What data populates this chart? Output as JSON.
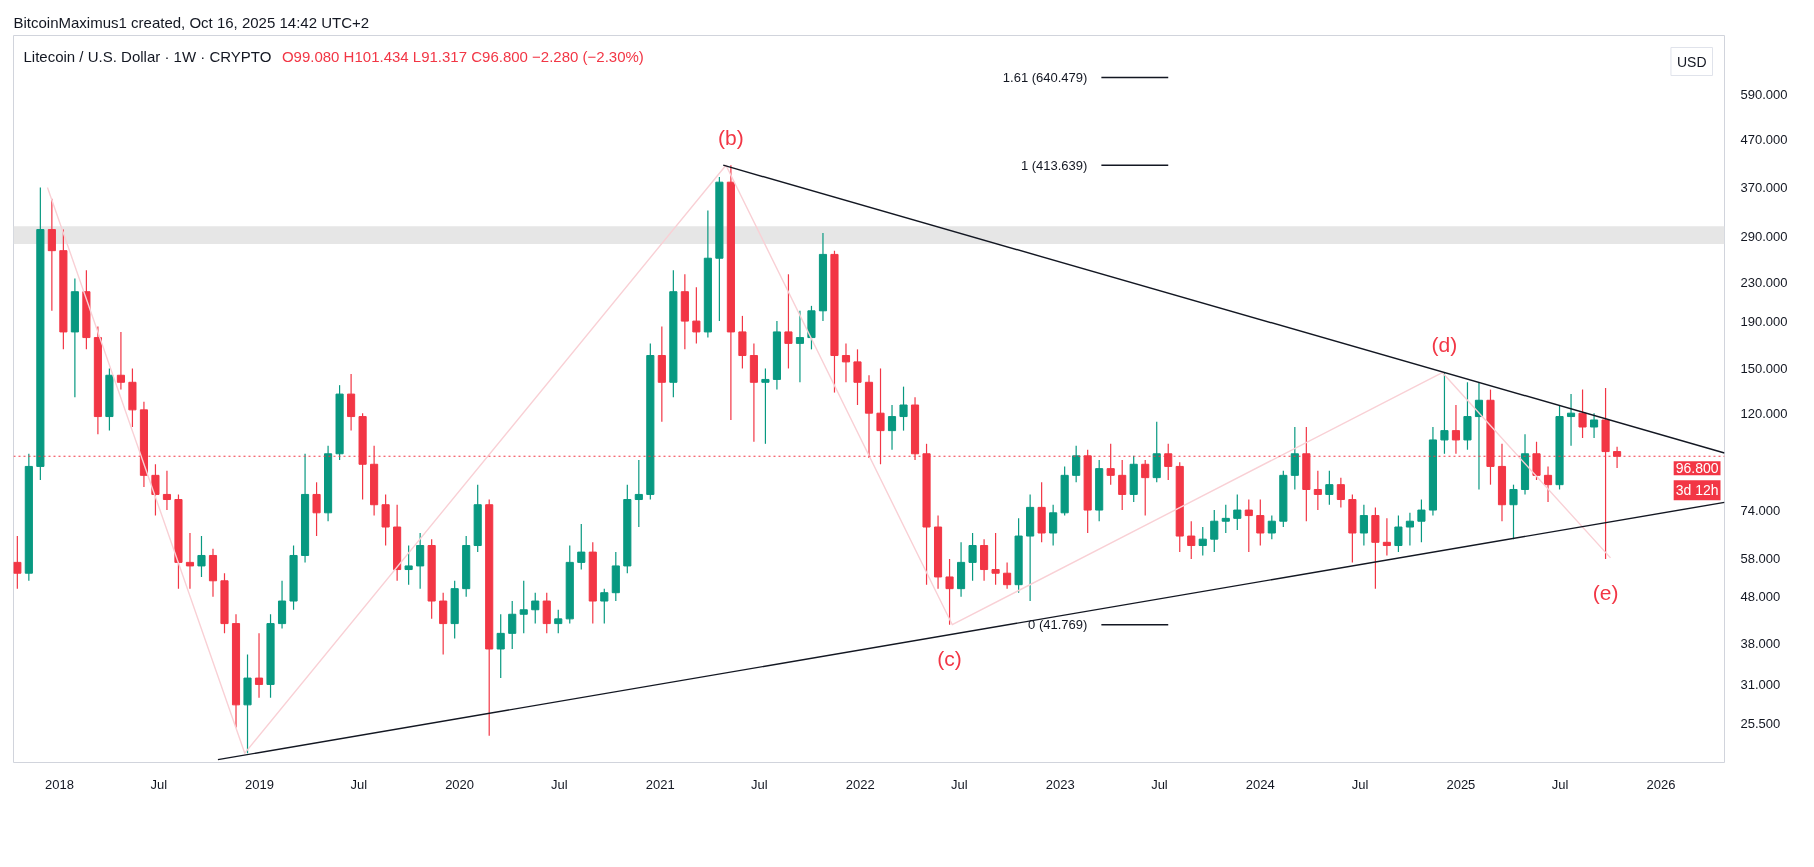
{
  "chart_data": {
    "type": "candlestick",
    "title": "Litecoin / U.S. Dollar · 1W · CRYPTO",
    "subtitle": "O99.080 H101.434 L91.317 C96.800 −2.280 (−2.30%)",
    "ylabel": "USD",
    "log": true,
    "xlim": [
      "2017-10-09",
      "2026-04-27"
    ],
    "ylim": [
      21,
      790
    ],
    "xticks": [
      {
        "value": "2018-01-01",
        "label": "2018"
      },
      {
        "value": "2018-07-01",
        "label": "Jul"
      },
      {
        "value": "2019-01-01",
        "label": "2019"
      },
      {
        "value": "2019-07-01",
        "label": "Jul"
      },
      {
        "value": "2020-01-01",
        "label": "2020"
      },
      {
        "value": "2020-07-01",
        "label": "Jul"
      },
      {
        "value": "2021-01-01",
        "label": "2021"
      },
      {
        "value": "2021-07-01",
        "label": "Jul"
      },
      {
        "value": "2022-01-01",
        "label": "2022"
      },
      {
        "value": "2022-07-01",
        "label": "Jul"
      },
      {
        "value": "2023-01-01",
        "label": "2023"
      },
      {
        "value": "2023-07-01",
        "label": "Jul"
      },
      {
        "value": "2024-01-01",
        "label": "2024"
      },
      {
        "value": "2024-07-01",
        "label": "Jul"
      },
      {
        "value": "2025-01-01",
        "label": "2025"
      },
      {
        "value": "2025-07-01",
        "label": "Jul"
      },
      {
        "value": "2026-01-01",
        "label": "2026"
      }
    ],
    "yticks": [
      {
        "value": 25.5,
        "label": "25.500"
      },
      {
        "value": 31,
        "label": "31.000"
      },
      {
        "value": 38,
        "label": "38.000"
      },
      {
        "value": 48,
        "label": "48.000"
      },
      {
        "value": 58,
        "label": "58.000"
      },
      {
        "value": 74,
        "label": "74.000"
      },
      {
        "value": 120,
        "label": "120.000"
      },
      {
        "value": 150,
        "label": "150.000"
      },
      {
        "value": 190,
        "label": "190.000"
      },
      {
        "value": 230,
        "label": "230.000"
      },
      {
        "value": 290,
        "label": "290.000"
      },
      {
        "value": 370,
        "label": "370.000"
      },
      {
        "value": 470,
        "label": "470.000"
      },
      {
        "value": 590,
        "label": "590.000"
      }
    ],
    "x": [
      "2017-10-16",
      "2017-11-06",
      "2017-11-27",
      "2017-12-18",
      "2018-01-08",
      "2018-01-29",
      "2018-02-19",
      "2018-03-12",
      "2018-04-02",
      "2018-04-23",
      "2018-05-14",
      "2018-06-04",
      "2018-06-25",
      "2018-07-16",
      "2018-08-06",
      "2018-08-27",
      "2018-09-17",
      "2018-10-08",
      "2018-10-29",
      "2018-11-19",
      "2018-12-10",
      "2018-12-31",
      "2019-01-21",
      "2019-02-11",
      "2019-03-04",
      "2019-03-25",
      "2019-04-15",
      "2019-05-06",
      "2019-05-27",
      "2019-06-17",
      "2019-07-08",
      "2019-07-29",
      "2019-08-19",
      "2019-09-09",
      "2019-09-30",
      "2019-10-21",
      "2019-11-11",
      "2019-12-02",
      "2019-12-23",
      "2020-01-13",
      "2020-02-03",
      "2020-02-24",
      "2020-03-16",
      "2020-04-06",
      "2020-04-27",
      "2020-05-18",
      "2020-06-08",
      "2020-06-29",
      "2020-07-20",
      "2020-08-10",
      "2020-08-31",
      "2020-09-21",
      "2020-10-12",
      "2020-11-02",
      "2020-11-23",
      "2020-12-14",
      "2021-01-04",
      "2021-01-25",
      "2021-02-15",
      "2021-03-08",
      "2021-03-29",
      "2021-04-19",
      "2021-05-10",
      "2021-05-31",
      "2021-06-21",
      "2021-07-12",
      "2021-08-02",
      "2021-08-23",
      "2021-09-13",
      "2021-10-04",
      "2021-10-25",
      "2021-11-15",
      "2021-12-06",
      "2021-12-27",
      "2022-01-17",
      "2022-02-07",
      "2022-02-28",
      "2022-03-21",
      "2022-04-11",
      "2022-05-02",
      "2022-05-23",
      "2022-06-13",
      "2022-07-04",
      "2022-07-25",
      "2022-08-15",
      "2022-09-05",
      "2022-09-26",
      "2022-10-17",
      "2022-11-07",
      "2022-11-28",
      "2022-12-19",
      "2023-01-09",
      "2023-01-30",
      "2023-02-20",
      "2023-03-13",
      "2023-04-03",
      "2023-04-24",
      "2023-05-15",
      "2023-06-05",
      "2023-06-26",
      "2023-07-17",
      "2023-08-07",
      "2023-08-28",
      "2023-09-18",
      "2023-10-09",
      "2023-10-30",
      "2023-11-20",
      "2023-12-11",
      "2024-01-01",
      "2024-01-22",
      "2024-02-12",
      "2024-03-04",
      "2024-03-25",
      "2024-04-15",
      "2024-05-06",
      "2024-05-27",
      "2024-06-17",
      "2024-07-08",
      "2024-07-29",
      "2024-08-19",
      "2024-09-09",
      "2024-09-30",
      "2024-10-21",
      "2024-11-11",
      "2024-12-02",
      "2024-12-23",
      "2025-01-13",
      "2025-02-03",
      "2025-02-24",
      "2025-03-17",
      "2025-04-07",
      "2025-04-28",
      "2025-05-19",
      "2025-06-09",
      "2025-06-30",
      "2025-07-21",
      "2025-08-11",
      "2025-09-01",
      "2025-09-22",
      "2025-10-13"
    ],
    "ohlc": [
      [
        57,
        65,
        50,
        54
      ],
      [
        54,
        98,
        52,
        92
      ],
      [
        92,
        370,
        86,
        300
      ],
      [
        300,
        350,
        200,
        270
      ],
      [
        270,
        300,
        165,
        180
      ],
      [
        180,
        235,
        130,
        220
      ],
      [
        220,
        245,
        165,
        175
      ],
      [
        175,
        185,
        108,
        118
      ],
      [
        118,
        150,
        110,
        145
      ],
      [
        145,
        180,
        135,
        140
      ],
      [
        140,
        150,
        112,
        122
      ],
      [
        122,
        127,
        83,
        88
      ],
      [
        88,
        93,
        72,
        80
      ],
      [
        80,
        90,
        74,
        78
      ],
      [
        78,
        80,
        50,
        57
      ],
      [
        57,
        66,
        50,
        56
      ],
      [
        56,
        65,
        53,
        59
      ],
      [
        59,
        61,
        48,
        52
      ],
      [
        52,
        54,
        40,
        42
      ],
      [
        42,
        44,
        25,
        28
      ],
      [
        28,
        36,
        22,
        32
      ],
      [
        32,
        40,
        29,
        31
      ],
      [
        31,
        44,
        29,
        42
      ],
      [
        42,
        52,
        41,
        47
      ],
      [
        47,
        62,
        45,
        59
      ],
      [
        59,
        98,
        57,
        80
      ],
      [
        80,
        85,
        65,
        73
      ],
      [
        73,
        102,
        70,
        98
      ],
      [
        98,
        138,
        95,
        132
      ],
      [
        132,
        146,
        110,
        118
      ],
      [
        118,
        120,
        78,
        93
      ],
      [
        93,
        102,
        72,
        76
      ],
      [
        76,
        80,
        62,
        68
      ],
      [
        68,
        76,
        52,
        55
      ],
      [
        55,
        62,
        51,
        56
      ],
      [
        56,
        66,
        50,
        62
      ],
      [
        62,
        64,
        43,
        47
      ],
      [
        47,
        49,
        36,
        42
      ],
      [
        42,
        52,
        39,
        50
      ],
      [
        50,
        65,
        48,
        62
      ],
      [
        62,
        84,
        60,
        76
      ],
      [
        76,
        78,
        24,
        37
      ],
      [
        37,
        44,
        32,
        40
      ],
      [
        40,
        47,
        37,
        44
      ],
      [
        44,
        52,
        40,
        45
      ],
      [
        45,
        49,
        42,
        47
      ],
      [
        47,
        49,
        40,
        42
      ],
      [
        42,
        45,
        40,
        43
      ],
      [
        43,
        62,
        42,
        57
      ],
      [
        57,
        69,
        55,
        60
      ],
      [
        60,
        63,
        42,
        47
      ],
      [
        47,
        50,
        42,
        49
      ],
      [
        49,
        60,
        47,
        56
      ],
      [
        56,
        84,
        54,
        78
      ],
      [
        78,
        95,
        68,
        80
      ],
      [
        80,
        170,
        78,
        160
      ],
      [
        160,
        185,
        115,
        140
      ],
      [
        140,
        245,
        130,
        220
      ],
      [
        220,
        240,
        165,
        190
      ],
      [
        190,
        225,
        170,
        180
      ],
      [
        180,
        330,
        175,
        260
      ],
      [
        260,
        390,
        190,
        380
      ],
      [
        380,
        413.6,
        116,
        180
      ],
      [
        180,
        195,
        150,
        160
      ],
      [
        160,
        170,
        104,
        140
      ],
      [
        140,
        150,
        103,
        142
      ],
      [
        142,
        190,
        135,
        180
      ],
      [
        180,
        240,
        150,
        170
      ],
      [
        170,
        200,
        140,
        175
      ],
      [
        175,
        205,
        165,
        200
      ],
      [
        200,
        295,
        190,
        265
      ],
      [
        265,
        270,
        133,
        160
      ],
      [
        160,
        170,
        140,
        155
      ],
      [
        155,
        165,
        125,
        140
      ],
      [
        140,
        145,
        96,
        120
      ],
      [
        120,
        150,
        93,
        110
      ],
      [
        110,
        125,
        100,
        118
      ],
      [
        118,
        137,
        110,
        125
      ],
      [
        125,
        130,
        95,
        98
      ],
      [
        98,
        103,
        51,
        68
      ],
      [
        68,
        72,
        50,
        53
      ],
      [
        53,
        58,
        41.77,
        50
      ],
      [
        50,
        63,
        48,
        57
      ],
      [
        57,
        66,
        52,
        62
      ],
      [
        62,
        64,
        52,
        55
      ],
      [
        55,
        66,
        51,
        54
      ],
      [
        54,
        57,
        50,
        51
      ],
      [
        51,
        71,
        49,
        65
      ],
      [
        65,
        80,
        47,
        75
      ],
      [
        75,
        85,
        63,
        66
      ],
      [
        66,
        76,
        62,
        73
      ],
      [
        73,
        92,
        72,
        88
      ],
      [
        88,
        102,
        85,
        97
      ],
      [
        97,
        100,
        66,
        74
      ],
      [
        74,
        95,
        70,
        91
      ],
      [
        91,
        103,
        84,
        88
      ],
      [
        88,
        95,
        74,
        80
      ],
      [
        80,
        97,
        77,
        93
      ],
      [
        93,
        95,
        72,
        87
      ],
      [
        87,
        115,
        85,
        98
      ],
      [
        98,
        103,
        86,
        92
      ],
      [
        92,
        94,
        60,
        65
      ],
      [
        65,
        70,
        58,
        62
      ],
      [
        62,
        68,
        59,
        64
      ],
      [
        64,
        74,
        60,
        70
      ],
      [
        70,
        76,
        66,
        71
      ],
      [
        71,
        80,
        67,
        74
      ],
      [
        74,
        78,
        60,
        72
      ],
      [
        72,
        78,
        62,
        66
      ],
      [
        66,
        72,
        64,
        70
      ],
      [
        70,
        90,
        68,
        88
      ],
      [
        88,
        112,
        82,
        98
      ],
      [
        98,
        112,
        70,
        82
      ],
      [
        82,
        90,
        74,
        80
      ],
      [
        80,
        90,
        76,
        84
      ],
      [
        84,
        87,
        75,
        78
      ],
      [
        78,
        80,
        57,
        66
      ],
      [
        66,
        76,
        62,
        72
      ],
      [
        72,
        75,
        50,
        63
      ],
      [
        63,
        71,
        59,
        62
      ],
      [
        62,
        72,
        60,
        68
      ],
      [
        68,
        73,
        62,
        70
      ],
      [
        70,
        78,
        63,
        74
      ],
      [
        74,
        112,
        72,
        105
      ],
      [
        105,
        147,
        98,
        110
      ],
      [
        110,
        125,
        98,
        105
      ],
      [
        105,
        140,
        100,
        118
      ],
      [
        118,
        140,
        82,
        128
      ],
      [
        128,
        135,
        84,
        92
      ],
      [
        92,
        103,
        70,
        76
      ],
      [
        76,
        84,
        64,
        82
      ],
      [
        82,
        108,
        80,
        98
      ],
      [
        98,
        104,
        86,
        88
      ],
      [
        88,
        92,
        77,
        84
      ],
      [
        84,
        125,
        82,
        118
      ],
      [
        118,
        132,
        102,
        120
      ],
      [
        120,
        135,
        106,
        112
      ],
      [
        112,
        120,
        106,
        116
      ],
      [
        116,
        136,
        58,
        99.08
      ],
      [
        99.08,
        101.434,
        91.317,
        96.8
      ]
    ],
    "colors": [
      "#f23645",
      "#089981",
      "#089981",
      "#f23645",
      "#f23645",
      "#089981",
      "#f23645",
      "#f23645",
      "#089981",
      "#f23645",
      "#f23645",
      "#f23645",
      "#f23645",
      "#f23645",
      "#f23645",
      "#f23645",
      "#089981",
      "#f23645",
      "#f23645",
      "#f23645",
      "#089981",
      "#f23645",
      "#089981",
      "#089981",
      "#089981",
      "#089981",
      "#f23645",
      "#089981",
      "#089981",
      "#f23645",
      "#f23645",
      "#f23645",
      "#f23645",
      "#f23645",
      "#089981",
      "#089981",
      "#f23645",
      "#f23645",
      "#089981",
      "#089981",
      "#089981",
      "#f23645",
      "#089981",
      "#089981",
      "#089981",
      "#089981",
      "#f23645",
      "#089981",
      "#089981",
      "#089981",
      "#f23645",
      "#089981",
      "#089981",
      "#089981",
      "#089981",
      "#089981",
      "#f23645",
      "#089981",
      "#f23645",
      "#f23645",
      "#089981",
      "#089981",
      "#f23645",
      "#f23645",
      "#f23645",
      "#089981",
      "#089981",
      "#f23645",
      "#089981",
      "#089981",
      "#089981",
      "#f23645",
      "#f23645",
      "#f23645",
      "#f23645",
      "#f23645",
      "#089981",
      "#089981",
      "#f23645",
      "#f23645",
      "#f23645",
      "#f23645",
      "#089981",
      "#089981",
      "#f23645",
      "#f23645",
      "#f23645",
      "#089981",
      "#089981",
      "#f23645",
      "#089981",
      "#089981",
      "#089981",
      "#f23645",
      "#089981",
      "#f23645",
      "#f23645",
      "#089981",
      "#f23645",
      "#089981",
      "#f23645",
      "#f23645",
      "#f23645",
      "#089981",
      "#089981",
      "#089981",
      "#089981",
      "#f23645",
      "#f23645",
      "#089981",
      "#089981",
      "#089981",
      "#f23645",
      "#f23645",
      "#089981",
      "#f23645",
      "#f23645",
      "#089981",
      "#f23645",
      "#f23645",
      "#089981",
      "#089981",
      "#089981",
      "#089981",
      "#089981",
      "#f23645",
      "#089981",
      "#089981",
      "#f23645",
      "#f23645",
      "#089981",
      "#089981",
      "#f23645",
      "#f23645",
      "#089981",
      "#089981",
      "#f23645",
      "#089981",
      "#f23645",
      "#f23645"
    ],
    "series": [
      {
        "type": "line",
        "color": "#f9d0d5",
        "x": [
          "2017-12-10",
          "2018-12-05",
          "2021-05-01",
          "2022-06-18",
          "2024-11-28",
          "2025-10-01"
        ],
        "values": [
          370,
          22,
          413.6,
          41.77,
          147,
          58.3
        ]
      },
      {
        "type": "line",
        "color": "#131722",
        "x": [
          "2021-04-26",
          "2026-04-27"
        ],
        "values": [
          413.6,
          98.4
        ]
      },
      {
        "type": "line",
        "color": "#131722",
        "x": [
          "2018-10-17",
          "2026-04-27"
        ],
        "values": [
          21.3,
          76.9
        ]
      },
      {
        "type": "line",
        "color": "#131722",
        "name": "1.61 (640.479)",
        "x": [
          "2023-03-17",
          "2023-07-17"
        ],
        "values": [
          640.479,
          640.479
        ]
      },
      {
        "type": "line",
        "color": "#131722",
        "name": "1 (413.639)",
        "x": [
          "2023-03-17",
          "2023-07-17"
        ],
        "values": [
          413.639,
          413.639
        ]
      },
      {
        "type": "line",
        "color": "#131722",
        "name": "0 (41.769)",
        "x": [
          "2023-03-17",
          "2023-07-17"
        ],
        "values": [
          41.769,
          41.769
        ]
      }
    ],
    "ref_lines": [
      {
        "axis": "y",
        "value": 96.8,
        "label": "96.800\n3d 12h",
        "color": "#f23645",
        "line_style": "dotted"
      }
    ],
    "bands": [
      {
        "axis": "y",
        "from": 279,
        "to": 305,
        "color": "#e6e6e6"
      }
    ],
    "annotations": [
      "BitcoinMaximus1 created, Oct 16, 2025 14:42 UTC+2",
      {
        "text": "(b)",
        "x": "2021-05-10",
        "y": 413.6
      },
      {
        "text": "(c)",
        "x": "2022-06-13",
        "y": 41.77
      },
      {
        "text": "(d)",
        "x": "2024-12-02",
        "y": 147
      },
      {
        "text": "(e)",
        "x": "2025-09-22",
        "y": 58
      }
    ]
  }
}
